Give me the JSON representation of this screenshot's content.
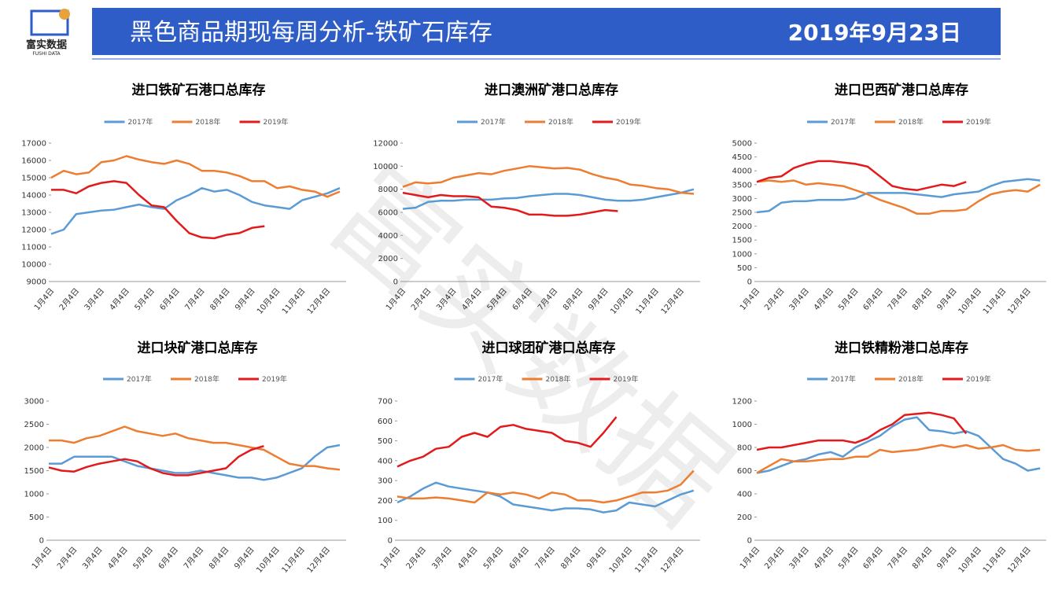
{
  "header": {
    "title": "黑色商品期现每周分析-铁矿石库存",
    "date": "2019年9月23日",
    "logo": "富实数据",
    "logo_sub": "FUSHI DATA",
    "watermark": "富实数据"
  },
  "chart_data": [
    {
      "type": "line",
      "title": "进口铁矿石港口总库存",
      "legend": "top",
      "categories": [
        "1月4日",
        null,
        "2月4日",
        null,
        "3月4日",
        null,
        "4月4日",
        null,
        "5月4日",
        null,
        "6月4日",
        null,
        "7月4日",
        null,
        "8月4日",
        null,
        "9月4日",
        null,
        "10月4日",
        null,
        "11月4日",
        null,
        "12月4日",
        null
      ],
      "ylim": [
        9000,
        17000
      ],
      "yticks": [
        9000,
        10000,
        11000,
        12000,
        13000,
        14000,
        15000,
        16000,
        17000
      ],
      "series": [
        {
          "name": "2017年",
          "color": "#5b9bd5",
          "values": [
            11750,
            12000,
            12900,
            13000,
            13100,
            13150,
            13300,
            13450,
            13300,
            13200,
            13700,
            14000,
            14400,
            14200,
            14300,
            14000,
            13600,
            13400,
            13300,
            13200,
            13700,
            13900,
            14100,
            14400
          ]
        },
        {
          "name": "2018年",
          "color": "#ed7d31",
          "values": [
            15000,
            15400,
            15200,
            15300,
            15900,
            16000,
            16250,
            16050,
            15900,
            15800,
            16000,
            15800,
            15400,
            15400,
            15300,
            15100,
            14800,
            14800,
            14400,
            14500,
            14300,
            14200,
            13900,
            14200
          ]
        },
        {
          "name": "2019年",
          "color": "#e31a1c",
          "values": [
            14300,
            14300,
            14100,
            14500,
            14700,
            14800,
            14700,
            14000,
            13400,
            13300,
            12500,
            11800,
            11550,
            11500,
            11700,
            11800,
            12100,
            12200,
            null,
            null,
            null,
            null,
            null,
            null
          ]
        }
      ]
    },
    {
      "type": "line",
      "title": "进口澳洲矿港口总库存",
      "legend": "top",
      "categories": [
        "1月4日",
        null,
        "2月4日",
        null,
        "3月4日",
        null,
        "4月4日",
        null,
        "5月4日",
        null,
        "6月4日",
        null,
        "7月4日",
        null,
        "8月4日",
        null,
        "9月4日",
        null,
        "10月4日",
        null,
        "11月4日",
        null,
        "12月4日",
        null
      ],
      "ylim": [
        0,
        12000
      ],
      "yticks": [
        0,
        2000,
        4000,
        6000,
        8000,
        10000,
        12000
      ],
      "series": [
        {
          "name": "2017年",
          "color": "#5b9bd5",
          "values": [
            6300,
            6400,
            6900,
            7000,
            7000,
            7100,
            7100,
            7100,
            7200,
            7250,
            7400,
            7500,
            7600,
            7600,
            7500,
            7300,
            7100,
            7000,
            7000,
            7100,
            7300,
            7500,
            7700,
            8000
          ]
        },
        {
          "name": "2018年",
          "color": "#ed7d31",
          "values": [
            8200,
            8600,
            8500,
            8600,
            9000,
            9200,
            9400,
            9300,
            9600,
            9800,
            10000,
            9900,
            9800,
            9850,
            9700,
            9300,
            9000,
            8800,
            8400,
            8300,
            8100,
            8000,
            7700,
            7600
          ]
        },
        {
          "name": "2019年",
          "color": "#e31a1c",
          "values": [
            7700,
            7500,
            7300,
            7500,
            7400,
            7400,
            7300,
            6500,
            6400,
            6200,
            5800,
            5800,
            5700,
            5700,
            5800,
            6000,
            6200,
            6100,
            null,
            null,
            null,
            null,
            null,
            null
          ]
        }
      ]
    },
    {
      "type": "line",
      "title": "进口巴西矿港口总库存",
      "legend": "top",
      "categories": [
        "1月4日",
        null,
        "2月4日",
        null,
        "3月4日",
        null,
        "4月4日",
        null,
        "5月4日",
        null,
        "6月4日",
        null,
        "7月4日",
        null,
        "8月4日",
        null,
        "9月4日",
        null,
        "10月4日",
        null,
        "11月4日",
        null,
        "12月4日",
        null
      ],
      "ylim": [
        0,
        5000
      ],
      "yticks": [
        0,
        500,
        1000,
        1500,
        2000,
        2500,
        3000,
        3500,
        4000,
        4500,
        5000
      ],
      "series": [
        {
          "name": "2017年",
          "color": "#5b9bd5",
          "values": [
            2500,
            2550,
            2850,
            2900,
            2900,
            2950,
            2950,
            2950,
            3000,
            3200,
            3200,
            3200,
            3200,
            3150,
            3100,
            3050,
            3150,
            3200,
            3250,
            3450,
            3600,
            3650,
            3700,
            3650
          ]
        },
        {
          "name": "2018年",
          "color": "#ed7d31",
          "values": [
            3600,
            3650,
            3600,
            3650,
            3500,
            3550,
            3500,
            3450,
            3300,
            3150,
            2950,
            2800,
            2650,
            2450,
            2450,
            2550,
            2550,
            2600,
            2900,
            3150,
            3250,
            3300,
            3250,
            3500
          ]
        },
        {
          "name": "2019年",
          "color": "#e31a1c",
          "values": [
            3600,
            3750,
            3800,
            4100,
            4250,
            4350,
            4350,
            4300,
            4250,
            4150,
            3800,
            3450,
            3350,
            3300,
            3400,
            3500,
            3450,
            3600,
            null,
            null,
            null,
            null,
            null,
            null
          ]
        }
      ]
    },
    {
      "type": "line",
      "title": "进口块矿港口总库存",
      "legend": "top",
      "categories": [
        "1月4日",
        null,
        "2月4日",
        null,
        "3月4日",
        null,
        "4月4日",
        null,
        "5月4日",
        null,
        "6月4日",
        null,
        "7月4日",
        null,
        "8月4日",
        null,
        "9月4日",
        null,
        "10月4日",
        null,
        "11月4日",
        null,
        "12月4日",
        null
      ],
      "ylim": [
        0,
        3000
      ],
      "yticks": [
        0,
        500,
        1000,
        1500,
        2000,
        2500,
        3000
      ],
      "series": [
        {
          "name": "2017年",
          "color": "#5b9bd5",
          "values": [
            1650,
            1650,
            1800,
            1800,
            1800,
            1800,
            1700,
            1600,
            1550,
            1500,
            1450,
            1450,
            1500,
            1450,
            1400,
            1350,
            1350,
            1300,
            1350,
            1450,
            1550,
            1800,
            2000,
            2050
          ]
        },
        {
          "name": "2018年",
          "color": "#ed7d31",
          "values": [
            2150,
            2150,
            2100,
            2200,
            2250,
            2350,
            2450,
            2350,
            2300,
            2250,
            2300,
            2200,
            2150,
            2100,
            2100,
            2050,
            2000,
            1950,
            1800,
            1650,
            1600,
            1600,
            1550,
            1520
          ]
        },
        {
          "name": "2019年",
          "color": "#e31a1c",
          "values": [
            1570,
            1500,
            1480,
            1580,
            1650,
            1700,
            1750,
            1700,
            1550,
            1450,
            1400,
            1400,
            1450,
            1500,
            1550,
            1800,
            1950,
            2030,
            null,
            null,
            null,
            null,
            null,
            null
          ]
        }
      ]
    },
    {
      "type": "line",
      "title": "进口球团矿港口总库存",
      "legend": "top",
      "categories": [
        "1月4日",
        null,
        "2月4日",
        null,
        "3月4日",
        null,
        "4月4日",
        null,
        "5月4日",
        null,
        "6月4日",
        null,
        "7月4日",
        null,
        "8月4日",
        null,
        "9月4日",
        null,
        "10月4日",
        null,
        "11月4日",
        null,
        "12月4日",
        null
      ],
      "ylim": [
        0,
        700
      ],
      "yticks": [
        0,
        100,
        200,
        300,
        400,
        500,
        600,
        700
      ],
      "series": [
        {
          "name": "2017年",
          "color": "#5b9bd5",
          "values": [
            190,
            220,
            260,
            290,
            270,
            260,
            250,
            240,
            220,
            180,
            170,
            160,
            150,
            160,
            160,
            155,
            140,
            150,
            190,
            180,
            170,
            200,
            230,
            250
          ]
        },
        {
          "name": "2018年",
          "color": "#ed7d31",
          "values": [
            220,
            210,
            210,
            215,
            210,
            200,
            190,
            240,
            230,
            240,
            230,
            210,
            240,
            230,
            200,
            200,
            190,
            200,
            220,
            240,
            240,
            250,
            280,
            350
          ]
        },
        {
          "name": "2019年",
          "color": "#e31a1c",
          "values": [
            370,
            400,
            420,
            460,
            470,
            520,
            540,
            520,
            570,
            580,
            560,
            550,
            540,
            500,
            490,
            470,
            540,
            620,
            null,
            null,
            null,
            null,
            null,
            null
          ]
        }
      ]
    },
    {
      "type": "line",
      "title": "进口铁精粉港口总库存",
      "legend": "top",
      "categories": [
        "1月4日",
        null,
        "2月4日",
        null,
        "3月4日",
        null,
        "4月4日",
        null,
        "5月4日",
        null,
        "6月4日",
        null,
        "7月4日",
        null,
        "8月4日",
        null,
        "9月4日",
        null,
        "10月4日",
        null,
        "11月4日",
        null,
        "12月4日",
        null
      ],
      "ylim": [
        0,
        1200
      ],
      "yticks": [
        0,
        200,
        400,
        600,
        800,
        1000,
        1200
      ],
      "series": [
        {
          "name": "2017年",
          "color": "#5b9bd5",
          "values": [
            580,
            600,
            640,
            680,
            700,
            740,
            760,
            720,
            800,
            850,
            900,
            980,
            1040,
            1060,
            950,
            940,
            920,
            940,
            900,
            800,
            700,
            660,
            600,
            620
          ]
        },
        {
          "name": "2018年",
          "color": "#ed7d31",
          "values": [
            580,
            640,
            700,
            680,
            680,
            690,
            700,
            700,
            720,
            720,
            780,
            760,
            770,
            780,
            800,
            820,
            800,
            820,
            790,
            800,
            820,
            780,
            770,
            780
          ]
        },
        {
          "name": "2019年",
          "color": "#e31a1c",
          "values": [
            780,
            800,
            800,
            820,
            840,
            860,
            860,
            860,
            840,
            880,
            950,
            1000,
            1080,
            1090,
            1100,
            1080,
            1050,
            920,
            null,
            null,
            null,
            null,
            null,
            null
          ]
        }
      ]
    }
  ]
}
